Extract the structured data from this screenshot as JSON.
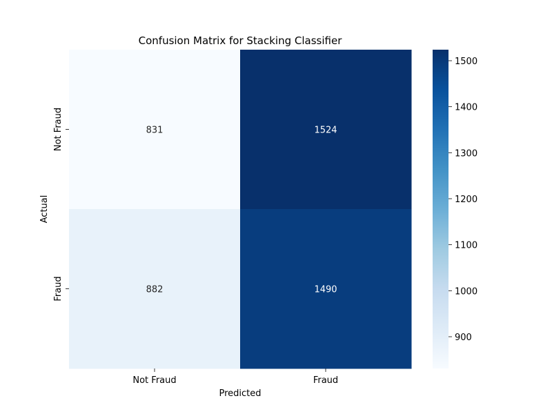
{
  "chart_data": {
    "type": "heatmap",
    "title": "Confusion Matrix for Stacking Classifier",
    "xlabel": "Predicted",
    "ylabel": "Actual",
    "x_categories": [
      "Not Fraud",
      "Fraud"
    ],
    "y_categories": [
      "Not Fraud",
      "Fraud"
    ],
    "matrix": [
      [
        831,
        1524
      ],
      [
        882,
        1490
      ]
    ],
    "colormap": "Blues",
    "colors": {
      "low": "#f7fbff",
      "high": "#08306b"
    },
    "colorbar": {
      "min": 831,
      "max": 1524,
      "ticks": [
        900,
        1000,
        1100,
        1200,
        1300,
        1400,
        1500
      ]
    },
    "grid": false
  }
}
